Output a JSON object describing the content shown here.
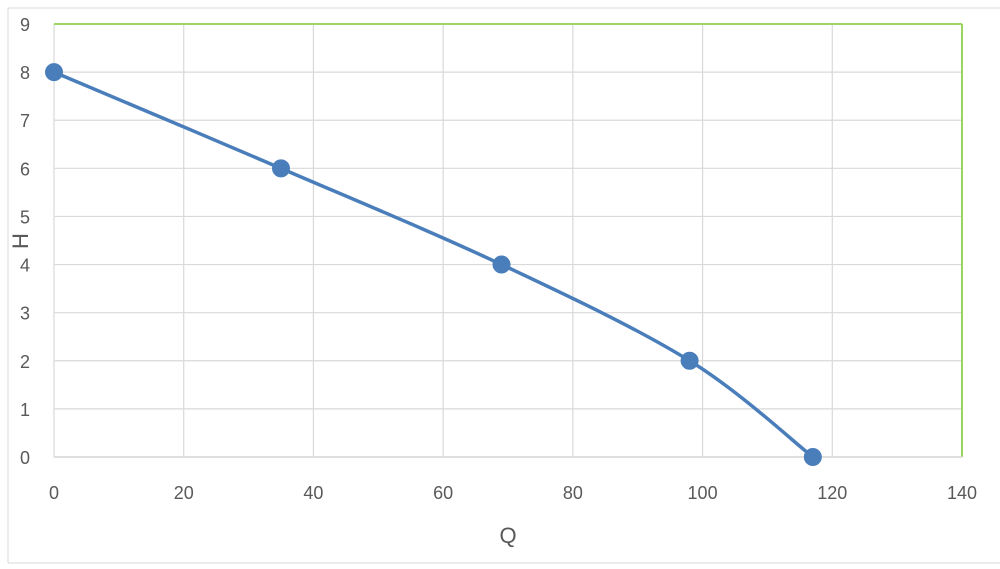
{
  "chart_data": {
    "type": "scatter",
    "xlabel": "Q",
    "ylabel": "H",
    "xlim": [
      0,
      140
    ],
    "ylim": [
      0,
      9
    ],
    "xticks": [
      0,
      20,
      40,
      60,
      80,
      100,
      120,
      140
    ],
    "yticks": [
      0,
      1,
      2,
      3,
      4,
      5,
      6,
      7,
      8,
      9
    ],
    "grid": true,
    "smooth_line": true,
    "series": [
      {
        "x": [
          0,
          35,
          69,
          98,
          117
        ],
        "y": [
          8,
          6,
          4,
          2,
          0
        ],
        "color": "#4a7ebb"
      }
    ],
    "colors": {
      "grid": "#d9d9d9",
      "plot_border": "#92d050",
      "outer_border": "#d9d9d9",
      "text": "#595959"
    }
  }
}
